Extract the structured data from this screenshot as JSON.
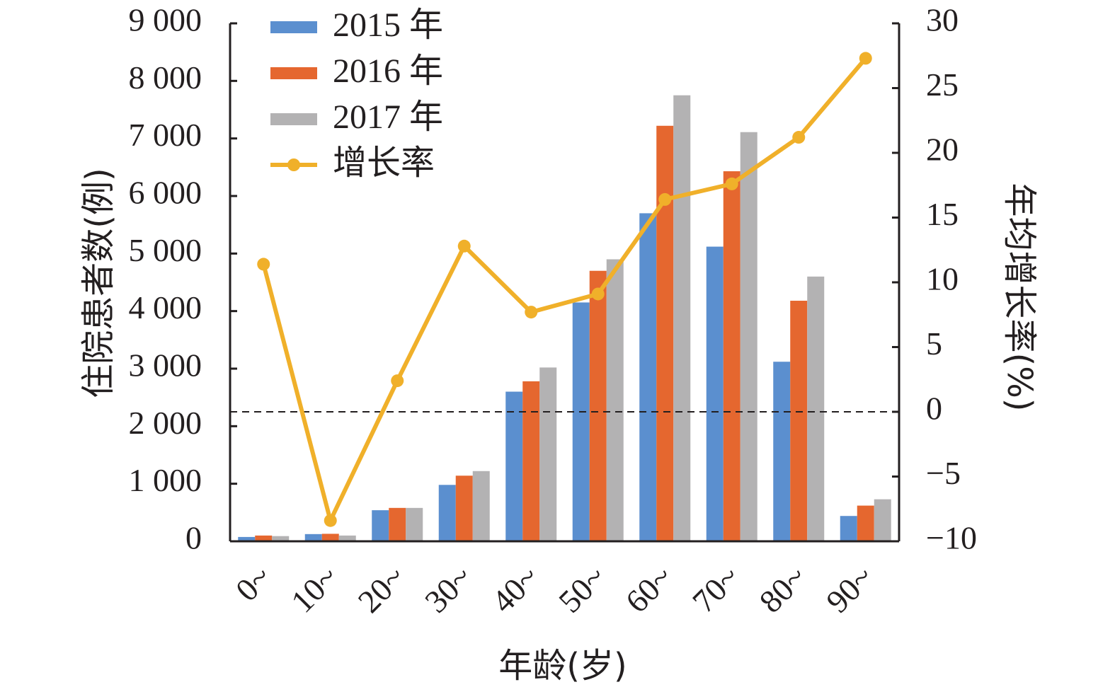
{
  "chart_data": {
    "type": "bar",
    "categories": [
      "0~",
      "10~",
      "20~",
      "30~",
      "40~",
      "50~",
      "60~",
      "70~",
      "80~",
      "90~"
    ],
    "series": [
      {
        "name": "2015 年",
        "kind": "bar",
        "axis": "left",
        "color": "#5b8fcf",
        "values": [
          75,
          125,
          540,
          980,
          2600,
          4150,
          5700,
          5120,
          3120,
          440
        ]
      },
      {
        "name": "2016 年",
        "kind": "bar",
        "axis": "left",
        "color": "#e5672f",
        "values": [
          100,
          130,
          580,
          1140,
          2780,
          4700,
          7220,
          6430,
          4180,
          620
        ]
      },
      {
        "name": "2017 年",
        "kind": "bar",
        "axis": "left",
        "color": "#b3b2b3",
        "values": [
          90,
          100,
          580,
          1220,
          3020,
          4900,
          7750,
          7110,
          4600,
          730
        ]
      },
      {
        "name": "增长率",
        "kind": "line",
        "axis": "right",
        "color": "#f0b02a",
        "values": [
          11.4,
          -8.4,
          2.4,
          12.8,
          7.7,
          9.1,
          16.4,
          17.6,
          21.2,
          27.3
        ]
      }
    ],
    "xlabel": "年龄(岁)",
    "ylabel": "住院患者数(例)",
    "y2label": "年均增长率(%)",
    "ylim": [
      0,
      9000
    ],
    "y2lim": [
      -10,
      30
    ],
    "yticks": [
      "0",
      "1 000",
      "2 000",
      "3 000",
      "4 000",
      "5 000",
      "6 000",
      "7 000",
      "8 000",
      "9 000"
    ],
    "y2ticks": [
      "−10",
      "−5",
      "0",
      "5",
      "10",
      "15",
      "20",
      "25",
      "30"
    ],
    "reference_line": {
      "axis": "right",
      "value": 0,
      "style": "dashed"
    },
    "legend_position": "top-left",
    "grid": false
  }
}
